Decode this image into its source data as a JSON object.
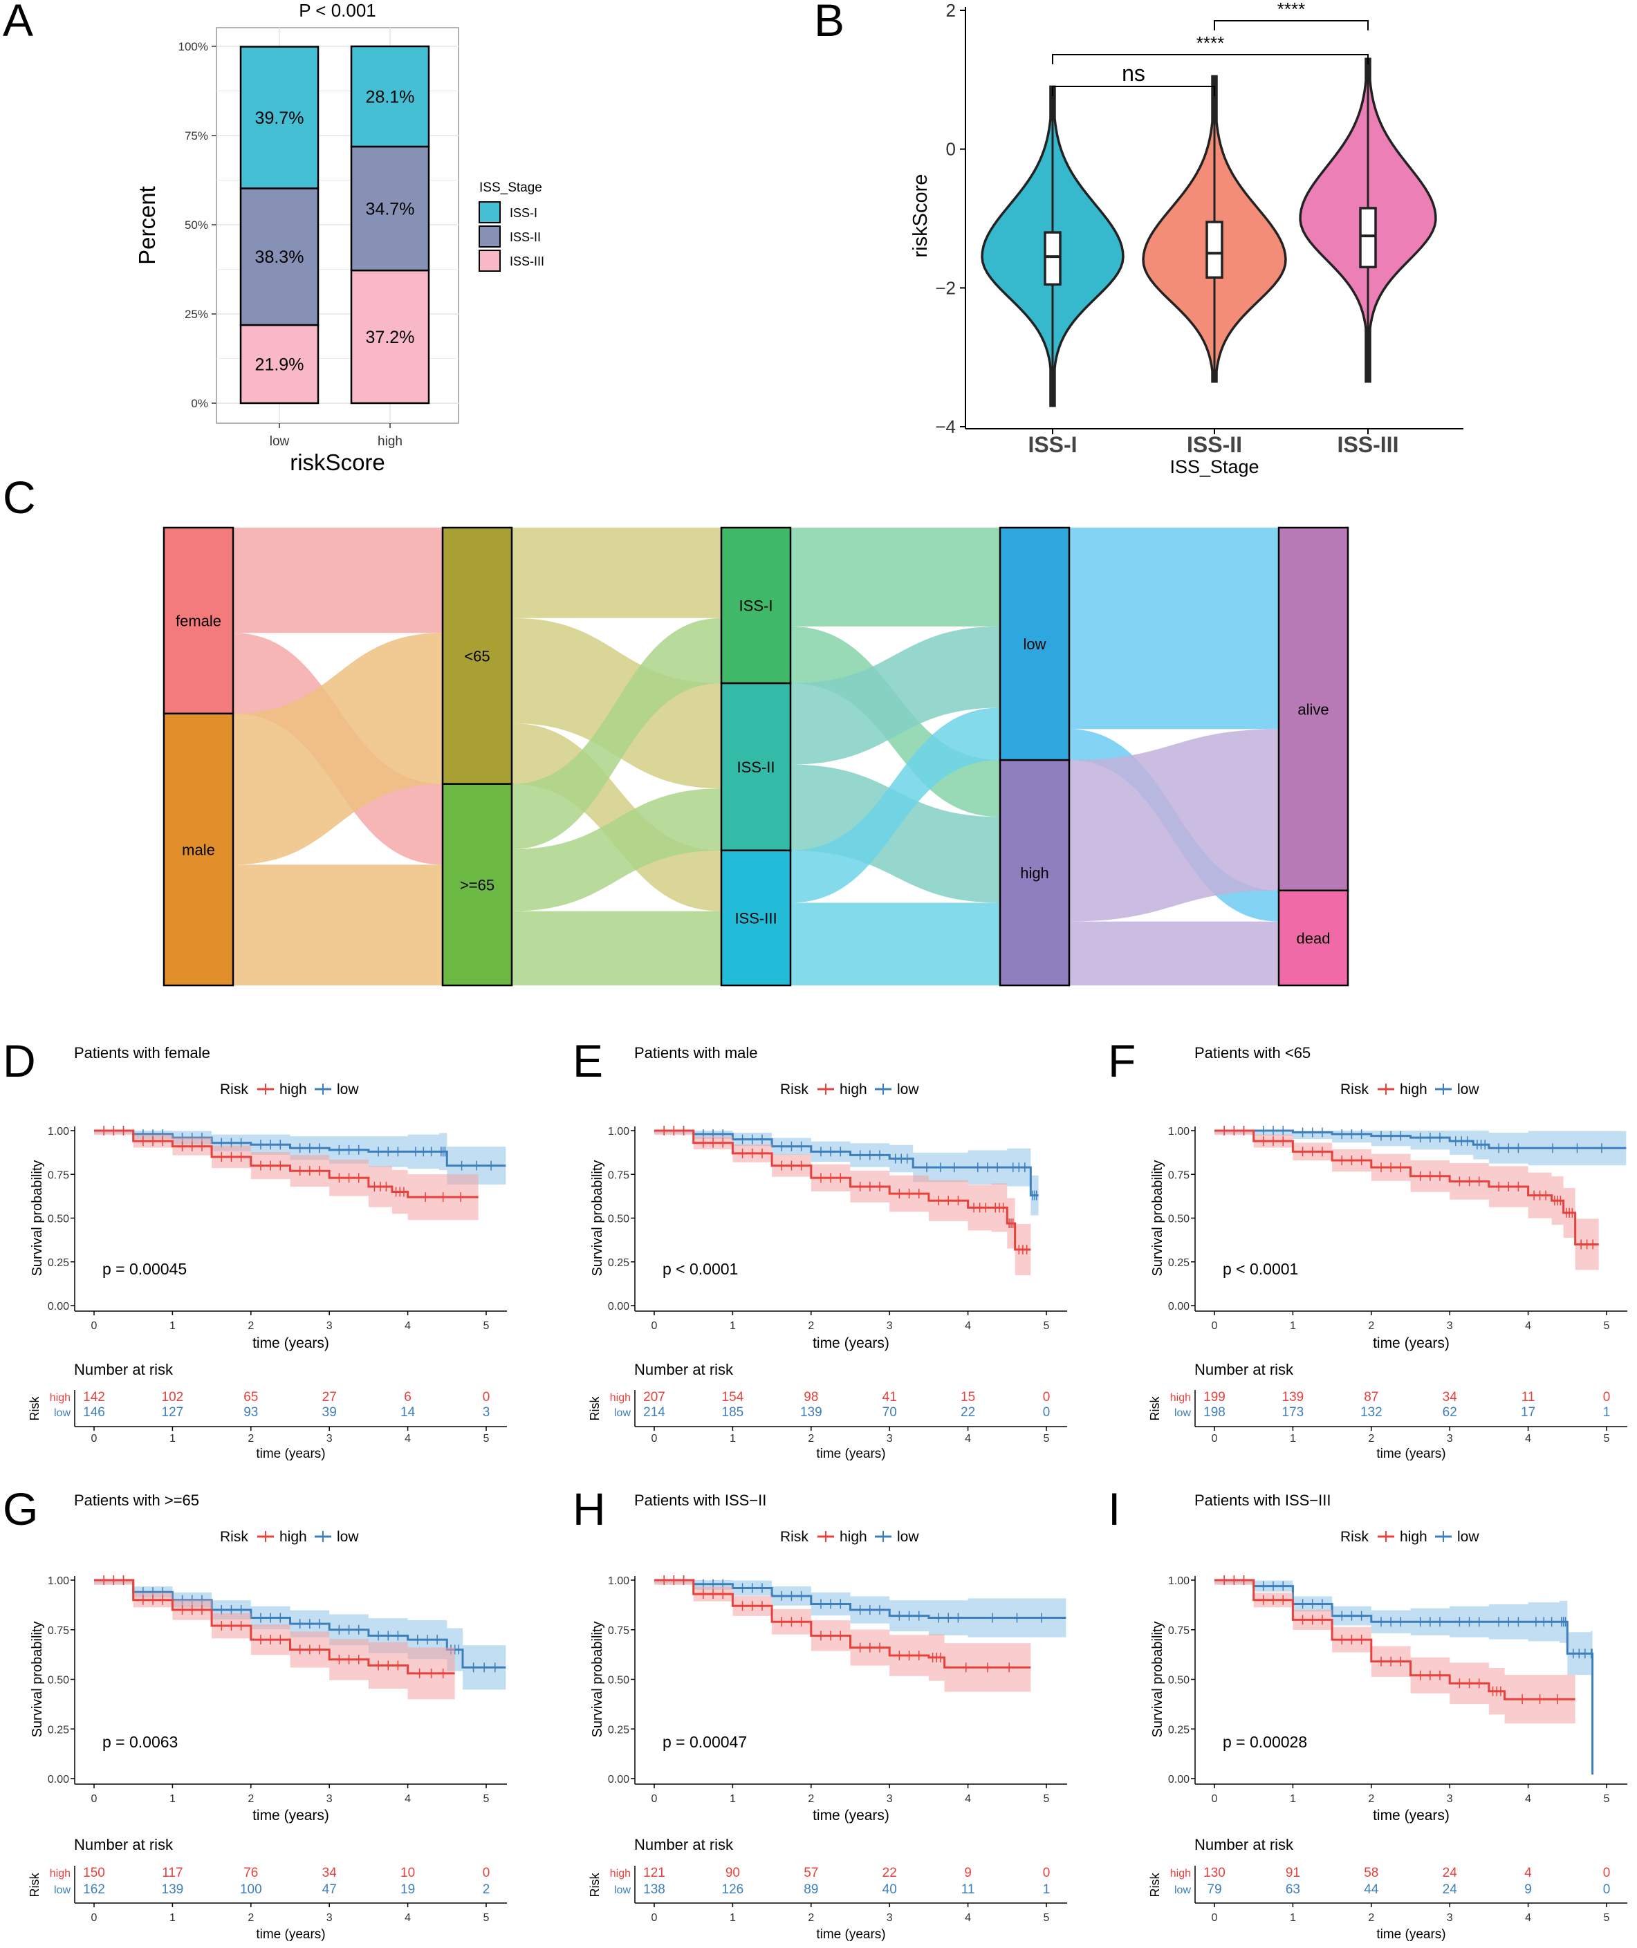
{
  "colors": {
    "high": "#e8413c",
    "low": "#3d7fbd",
    "high_fill": "#f4a4a4",
    "low_fill": "#8fc3e8",
    "iss1": "#45bfd3",
    "iss2": "#8791b5",
    "iss3": "#f9b8c8",
    "vio1": "#36b8cd",
    "vio2": "#f48d78",
    "vio3": "#ec7fb5"
  },
  "chart_data": [
    {
      "panel": "A",
      "type": "bar",
      "title": "P < 0.001",
      "xlabel": "riskScore",
      "ylabel": "Percent",
      "categories": [
        "low",
        "high"
      ],
      "yticks": [
        "0%",
        "25%",
        "50%",
        "75%",
        "100%"
      ],
      "legend_title": "ISS_Stage",
      "series": [
        {
          "name": "ISS-III",
          "values": [
            21.9,
            37.2
          ],
          "labels": [
            "21.9%",
            "37.2%"
          ]
        },
        {
          "name": "ISS-II",
          "values": [
            38.3,
            34.7
          ],
          "labels": [
            "38.3%",
            "34.7%"
          ]
        },
        {
          "name": "ISS-I",
          "values": [
            39.7,
            28.1
          ],
          "labels": [
            "39.7%",
            "28.1%"
          ]
        }
      ]
    },
    {
      "panel": "B",
      "type": "violin",
      "xlabel": "ISS_Stage",
      "ylabel": "riskScore",
      "ylim": [
        -4,
        2
      ],
      "yticks": [
        "2",
        "0",
        "−2",
        "−4"
      ],
      "categories": [
        "ISS-I",
        "ISS-II",
        "ISS-III"
      ],
      "box": [
        {
          "min": -3.7,
          "q1": -1.95,
          "median": -1.55,
          "q3": -1.2,
          "max": 0.9
        },
        {
          "min": -3.35,
          "q1": -1.85,
          "median": -1.5,
          "q3": -1.05,
          "max": 1.05
        },
        {
          "min": -3.35,
          "q1": -1.7,
          "median": -1.25,
          "q3": -0.85,
          "max": 1.3
        }
      ],
      "comparisons": [
        {
          "pair": [
            "ISS-I",
            "ISS-II"
          ],
          "label": "ns"
        },
        {
          "pair": [
            "ISS-I",
            "ISS-III"
          ],
          "label": "****"
        },
        {
          "pair": [
            "ISS-II",
            "ISS-III"
          ],
          "label": "****"
        }
      ]
    },
    {
      "panel": "C",
      "type": "sankey",
      "axes": [
        {
          "nodes": [
            {
              "label": "female",
              "size": 288
            },
            {
              "label": "male",
              "size": 421
            }
          ]
        },
        {
          "nodes": [
            {
              "label": "<65",
              "size": 397
            },
            {
              "label": ">=65",
              "size": 312
            }
          ]
        },
        {
          "nodes": [
            {
              "label": "ISS-I",
              "size": 241
            },
            {
              "label": "ISS-II",
              "size": 259
            },
            {
              "label": "ISS-III",
              "size": 209
            }
          ]
        },
        {
          "nodes": [
            {
              "label": "low",
              "size": 360
            },
            {
              "label": "high",
              "size": 349
            }
          ]
        },
        {
          "nodes": [
            {
              "label": "alive",
              "size": 562
            },
            {
              "label": "dead",
              "size": 147
            }
          ]
        }
      ]
    },
    {
      "panel": "D",
      "type": "line",
      "title": "Patients with female",
      "pvalue": "p = 0.00045",
      "high_curve": [
        [
          0,
          1
        ],
        [
          0.5,
          0.94
        ],
        [
          1,
          0.91
        ],
        [
          1.5,
          0.85
        ],
        [
          2,
          0.8
        ],
        [
          2.5,
          0.77
        ],
        [
          3,
          0.73
        ],
        [
          3.5,
          0.68
        ],
        [
          3.8,
          0.65
        ],
        [
          4,
          0.62
        ],
        [
          4.9,
          0.62
        ]
      ],
      "low_curve": [
        [
          0,
          1
        ],
        [
          0.5,
          0.98
        ],
        [
          1,
          0.96
        ],
        [
          1.5,
          0.93
        ],
        [
          2,
          0.92
        ],
        [
          2.5,
          0.9
        ],
        [
          3,
          0.89
        ],
        [
          3.5,
          0.88
        ],
        [
          4,
          0.88
        ],
        [
          4.4,
          0.88
        ],
        [
          4.5,
          0.8
        ],
        [
          5.25,
          0.8
        ]
      ],
      "high_n": [
        "142",
        "102",
        "65",
        "27",
        "6",
        "0"
      ],
      "low_n": [
        "146",
        "127",
        "93",
        "39",
        "14",
        "3"
      ]
    },
    {
      "panel": "E",
      "type": "line",
      "title": "Patients with male",
      "pvalue": "p < 0.0001",
      "high_curve": [
        [
          0,
          1
        ],
        [
          0.5,
          0.93
        ],
        [
          1,
          0.87
        ],
        [
          1.5,
          0.8
        ],
        [
          2,
          0.73
        ],
        [
          2.5,
          0.68
        ],
        [
          3,
          0.64
        ],
        [
          3.5,
          0.6
        ],
        [
          4,
          0.56
        ],
        [
          4.3,
          0.56
        ],
        [
          4.5,
          0.47
        ],
        [
          4.6,
          0.32
        ],
        [
          4.8,
          0.32
        ]
      ],
      "low_curve": [
        [
          0,
          1
        ],
        [
          0.5,
          0.98
        ],
        [
          1,
          0.95
        ],
        [
          1.5,
          0.91
        ],
        [
          2,
          0.88
        ],
        [
          2.5,
          0.86
        ],
        [
          3,
          0.84
        ],
        [
          3.3,
          0.79
        ],
        [
          4,
          0.79
        ],
        [
          4.5,
          0.79
        ],
        [
          4.8,
          0.63
        ],
        [
          4.9,
          0.63
        ]
      ],
      "high_n": [
        "207",
        "154",
        "98",
        "41",
        "15",
        "0"
      ],
      "low_n": [
        "214",
        "185",
        "139",
        "70",
        "22",
        "0"
      ]
    },
    {
      "panel": "F",
      "type": "line",
      "title": "Patients with <65",
      "pvalue": "p < 0.0001",
      "high_curve": [
        [
          0,
          1
        ],
        [
          0.5,
          0.94
        ],
        [
          1,
          0.88
        ],
        [
          1.5,
          0.83
        ],
        [
          2,
          0.79
        ],
        [
          2.5,
          0.74
        ],
        [
          3,
          0.71
        ],
        [
          3.5,
          0.68
        ],
        [
          4,
          0.63
        ],
        [
          4.3,
          0.6
        ],
        [
          4.45,
          0.53
        ],
        [
          4.6,
          0.35
        ],
        [
          4.9,
          0.35
        ]
      ],
      "low_curve": [
        [
          0,
          1
        ],
        [
          0.5,
          1
        ],
        [
          1,
          0.99
        ],
        [
          1.5,
          0.98
        ],
        [
          2,
          0.97
        ],
        [
          2.5,
          0.96
        ],
        [
          3,
          0.94
        ],
        [
          3.3,
          0.92
        ],
        [
          3.5,
          0.9
        ],
        [
          4,
          0.9
        ],
        [
          5.25,
          0.9
        ]
      ],
      "high_n": [
        "199",
        "139",
        "87",
        "34",
        "11",
        "0"
      ],
      "low_n": [
        "198",
        "173",
        "132",
        "62",
        "17",
        "1"
      ]
    },
    {
      "panel": "G",
      "type": "line",
      "title": "Patients with >=65",
      "pvalue": "p = 0.0063",
      "high_curve": [
        [
          0,
          1
        ],
        [
          0.5,
          0.9
        ],
        [
          1,
          0.85
        ],
        [
          1.5,
          0.77
        ],
        [
          2,
          0.7
        ],
        [
          2.5,
          0.65
        ],
        [
          3,
          0.6
        ],
        [
          3.5,
          0.57
        ],
        [
          4,
          0.53
        ],
        [
          4.6,
          0.53
        ]
      ],
      "low_curve": [
        [
          0,
          1
        ],
        [
          0.5,
          0.94
        ],
        [
          1,
          0.9
        ],
        [
          1.5,
          0.85
        ],
        [
          2,
          0.81
        ],
        [
          2.5,
          0.78
        ],
        [
          3,
          0.75
        ],
        [
          3.5,
          0.72
        ],
        [
          4,
          0.7
        ],
        [
          4.5,
          0.65
        ],
        [
          4.7,
          0.56
        ],
        [
          5.25,
          0.56
        ]
      ],
      "high_n": [
        "150",
        "117",
        "76",
        "34",
        "10",
        "0"
      ],
      "low_n": [
        "162",
        "139",
        "100",
        "47",
        "19",
        "2"
      ]
    },
    {
      "panel": "H",
      "type": "line",
      "title": "Patients with ISS−II",
      "pvalue": "p = 0.00047",
      "high_curve": [
        [
          0,
          1
        ],
        [
          0.5,
          0.93
        ],
        [
          1,
          0.87
        ],
        [
          1.5,
          0.79
        ],
        [
          2,
          0.72
        ],
        [
          2.5,
          0.66
        ],
        [
          3,
          0.62
        ],
        [
          3.5,
          0.61
        ],
        [
          3.7,
          0.56
        ],
        [
          4.8,
          0.56
        ]
      ],
      "low_curve": [
        [
          0,
          1
        ],
        [
          0.5,
          0.98
        ],
        [
          1,
          0.96
        ],
        [
          1.5,
          0.92
        ],
        [
          2,
          0.88
        ],
        [
          2.5,
          0.85
        ],
        [
          3,
          0.82
        ],
        [
          3.5,
          0.81
        ],
        [
          4,
          0.81
        ],
        [
          5.25,
          0.81
        ]
      ],
      "high_n": [
        "121",
        "90",
        "57",
        "22",
        "9",
        "0"
      ],
      "low_n": [
        "138",
        "126",
        "89",
        "40",
        "11",
        "1"
      ]
    },
    {
      "panel": "I",
      "type": "line",
      "title": "Patients with ISS−III",
      "pvalue": "p = 0.00028",
      "high_curve": [
        [
          0,
          1
        ],
        [
          0.5,
          0.9
        ],
        [
          1,
          0.8
        ],
        [
          1.5,
          0.7
        ],
        [
          2,
          0.59
        ],
        [
          2.5,
          0.52
        ],
        [
          3,
          0.48
        ],
        [
          3.5,
          0.44
        ],
        [
          3.7,
          0.4
        ],
        [
          4.6,
          0.4
        ]
      ],
      "low_curve": [
        [
          0,
          1
        ],
        [
          0.5,
          0.97
        ],
        [
          1,
          0.88
        ],
        [
          1.5,
          0.82
        ],
        [
          2,
          0.79
        ],
        [
          2.5,
          0.79
        ],
        [
          3,
          0.79
        ],
        [
          3.5,
          0.79
        ],
        [
          4,
          0.79
        ],
        [
          4.4,
          0.79
        ],
        [
          4.5,
          0.63
        ],
        [
          4.8,
          0.63
        ],
        [
          4.82,
          0.02
        ]
      ],
      "high_n": [
        "130",
        "91",
        "58",
        "24",
        "4",
        "0"
      ],
      "low_n": [
        "79",
        "63",
        "44",
        "24",
        "9",
        "0"
      ]
    }
  ],
  "labels": {
    "panel_letters": [
      "A",
      "B",
      "C",
      "D",
      "E",
      "F",
      "G",
      "H",
      "I"
    ],
    "km_ylabel": "Survival probability",
    "km_xlabel": "time (years)",
    "km_risk_title": "Risk",
    "km_high": "high",
    "km_low": "low",
    "km_yticks": [
      "1.00",
      "0.75",
      "0.50",
      "0.25",
      "0.00"
    ],
    "km_xticks": [
      "0",
      "1",
      "2",
      "3",
      "4",
      "5"
    ],
    "risk_table_title": "Number at risk",
    "risk_table_ylabel": "Risk"
  }
}
